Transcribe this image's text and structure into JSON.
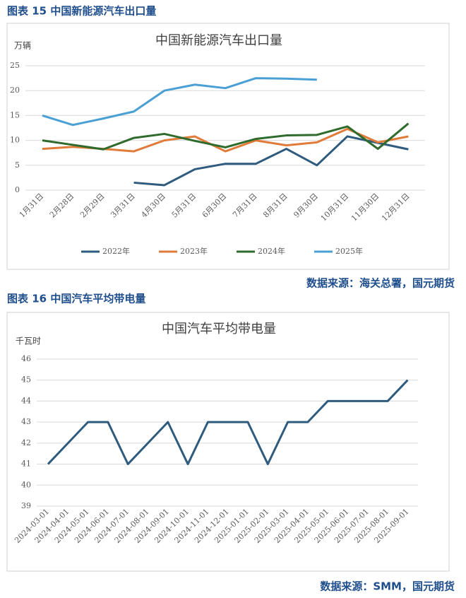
{
  "chart_data": [
    {
      "type": "line",
      "caption": "图表 15 中国新能源汽车出口量",
      "title": "中国新能源汽车出口量",
      "y_label": "万辆",
      "source": "数据来源：海关总署，国元期货",
      "categories": [
        "1月31日",
        "2月28日",
        "2月29日",
        "3月31日",
        "4月30日",
        "5月31日",
        "6月30日",
        "7月31日",
        "8月31日",
        "9月30日",
        "10月31日",
        "11月30日",
        "12月31日"
      ],
      "series": [
        {
          "name": "2022年",
          "color": "#2e5b7e",
          "values": [
            null,
            null,
            null,
            1.5,
            1.0,
            4.2,
            5.3,
            5.3,
            8.3,
            5.0,
            10.8,
            9.5,
            8.2
          ]
        },
        {
          "name": "2023年",
          "color": "#e07b39",
          "values": [
            8.3,
            8.7,
            8.3,
            7.8,
            10.0,
            10.8,
            7.8,
            10.0,
            9.0,
            9.6,
            12.3,
            9.6,
            10.8
          ]
        },
        {
          "name": "2024年",
          "color": "#2f6b2c",
          "values": [
            10.0,
            9.1,
            8.2,
            10.5,
            11.3,
            9.9,
            8.6,
            10.3,
            11.0,
            11.1,
            12.8,
            8.3,
            13.4
          ]
        },
        {
          "name": "2025年",
          "color": "#4aa0d5",
          "values": [
            15.0,
            13.1,
            14.4,
            15.8,
            20.0,
            21.2,
            20.5,
            22.5,
            22.4,
            22.2,
            null,
            null,
            null
          ]
        }
      ],
      "ylim": [
        0,
        25
      ],
      "yticks": [
        0,
        5,
        10,
        15,
        20,
        25
      ],
      "grid": true,
      "legend": "bottom"
    },
    {
      "type": "line",
      "caption": "图表 16 中国汽车平均带电量",
      "title": "中国汽车平均带电量",
      "y_label": "千瓦时",
      "source": "数据来源：SMM，国元期货",
      "categories": [
        "2024-03-01",
        "2024-04-01",
        "2024-05-01",
        "2024-06-01",
        "2024-07-01",
        "2024-08-01",
        "2024-09-01",
        "2024-10-01",
        "2024-11-01",
        "2024-12-01",
        "2025-01-01",
        "2025-02-01",
        "2025-03-01",
        "2025-04-01",
        "2025-05-01",
        "2025-06-01",
        "2025-07-01",
        "2025-08-01",
        "2025-09-01"
      ],
      "series": [
        {
          "color": "#2e5b7e",
          "values": [
            41,
            42,
            43,
            43,
            41,
            42,
            43,
            41,
            43,
            43,
            43,
            41,
            43,
            43,
            44,
            44,
            44,
            44,
            45
          ]
        }
      ],
      "ylim": [
        39,
        46
      ],
      "yticks": [
        39,
        40,
        41,
        42,
        43,
        44,
        45,
        46
      ],
      "grid": true
    }
  ]
}
